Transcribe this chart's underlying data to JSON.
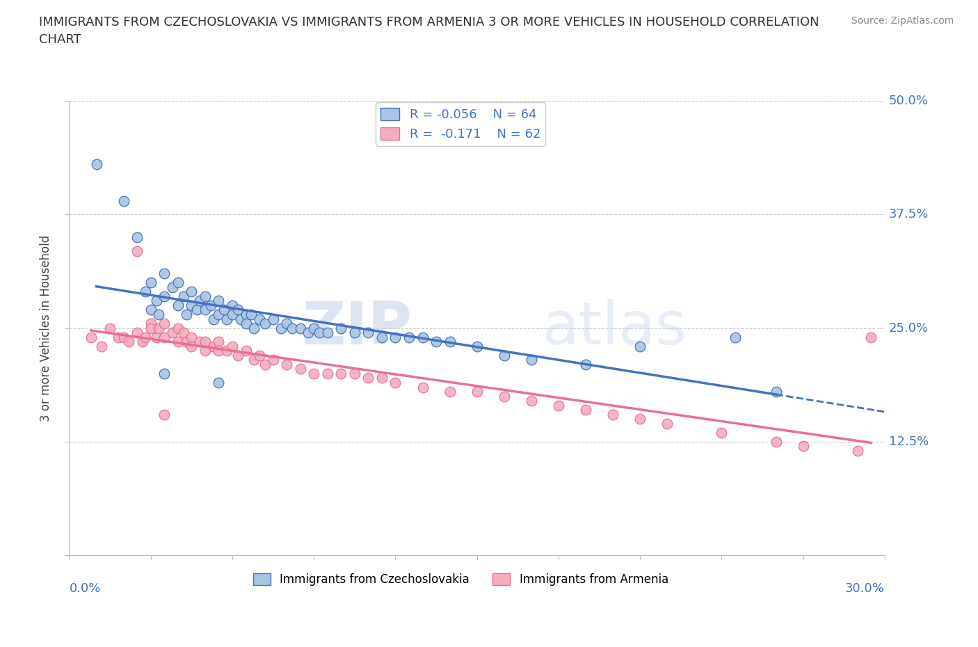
{
  "title": "IMMIGRANTS FROM CZECHOSLOVAKIA VS IMMIGRANTS FROM ARMENIA 3 OR MORE VEHICLES IN HOUSEHOLD CORRELATION\nCHART",
  "source": "Source: ZipAtlas.com",
  "ylabel_label": "3 or more Vehicles in Household",
  "xmin": 0.0,
  "xmax": 0.3,
  "ymin": 0.0,
  "ymax": 0.5,
  "legend_R1": "R = -0.056",
  "legend_N1": "N = 64",
  "legend_R2": "R =  -0.171",
  "legend_N2": "N = 62",
  "color_czech": "#aac4e2",
  "color_armenia": "#f5adc0",
  "line_color_czech": "#4472c4",
  "line_color_armenia": "#e87090",
  "watermark_zip": "ZIP",
  "watermark_atlas": "atlas",
  "czech_scatter_x": [
    0.01,
    0.02,
    0.025,
    0.028,
    0.03,
    0.03,
    0.032,
    0.033,
    0.035,
    0.035,
    0.038,
    0.04,
    0.04,
    0.042,
    0.043,
    0.045,
    0.045,
    0.047,
    0.048,
    0.05,
    0.05,
    0.052,
    0.053,
    0.055,
    0.055,
    0.057,
    0.058,
    0.06,
    0.06,
    0.062,
    0.063,
    0.065,
    0.065,
    0.067,
    0.068,
    0.07,
    0.072,
    0.075,
    0.078,
    0.08,
    0.082,
    0.085,
    0.088,
    0.09,
    0.092,
    0.095,
    0.1,
    0.105,
    0.11,
    0.115,
    0.12,
    0.125,
    0.13,
    0.135,
    0.14,
    0.15,
    0.16,
    0.17,
    0.19,
    0.21,
    0.245,
    0.26,
    0.035,
    0.055
  ],
  "czech_scatter_y": [
    0.43,
    0.39,
    0.35,
    0.29,
    0.3,
    0.27,
    0.28,
    0.265,
    0.31,
    0.285,
    0.295,
    0.3,
    0.275,
    0.285,
    0.265,
    0.29,
    0.275,
    0.27,
    0.28,
    0.285,
    0.27,
    0.275,
    0.26,
    0.28,
    0.265,
    0.27,
    0.26,
    0.275,
    0.265,
    0.27,
    0.26,
    0.265,
    0.255,
    0.265,
    0.25,
    0.26,
    0.255,
    0.26,
    0.25,
    0.255,
    0.25,
    0.25,
    0.245,
    0.25,
    0.245,
    0.245,
    0.25,
    0.245,
    0.245,
    0.24,
    0.24,
    0.24,
    0.24,
    0.235,
    0.235,
    0.23,
    0.22,
    0.215,
    0.21,
    0.23,
    0.24,
    0.18,
    0.2,
    0.19
  ],
  "armenia_scatter_x": [
    0.008,
    0.012,
    0.015,
    0.018,
    0.02,
    0.022,
    0.025,
    0.027,
    0.028,
    0.03,
    0.03,
    0.032,
    0.033,
    0.035,
    0.035,
    0.038,
    0.04,
    0.04,
    0.042,
    0.043,
    0.045,
    0.045,
    0.048,
    0.05,
    0.05,
    0.053,
    0.055,
    0.055,
    0.058,
    0.06,
    0.062,
    0.065,
    0.068,
    0.07,
    0.072,
    0.075,
    0.08,
    0.085,
    0.09,
    0.095,
    0.1,
    0.105,
    0.11,
    0.115,
    0.12,
    0.13,
    0.14,
    0.15,
    0.16,
    0.17,
    0.18,
    0.19,
    0.2,
    0.21,
    0.22,
    0.24,
    0.26,
    0.27,
    0.29,
    0.295,
    0.025,
    0.035
  ],
  "armenia_scatter_y": [
    0.24,
    0.23,
    0.25,
    0.24,
    0.24,
    0.235,
    0.245,
    0.235,
    0.24,
    0.255,
    0.25,
    0.24,
    0.25,
    0.255,
    0.24,
    0.245,
    0.25,
    0.235,
    0.245,
    0.235,
    0.24,
    0.23,
    0.235,
    0.235,
    0.225,
    0.23,
    0.235,
    0.225,
    0.225,
    0.23,
    0.22,
    0.225,
    0.215,
    0.22,
    0.21,
    0.215,
    0.21,
    0.205,
    0.2,
    0.2,
    0.2,
    0.2,
    0.195,
    0.195,
    0.19,
    0.185,
    0.18,
    0.18,
    0.175,
    0.17,
    0.165,
    0.16,
    0.155,
    0.15,
    0.145,
    0.135,
    0.125,
    0.12,
    0.115,
    0.24,
    0.335,
    0.155
  ]
}
